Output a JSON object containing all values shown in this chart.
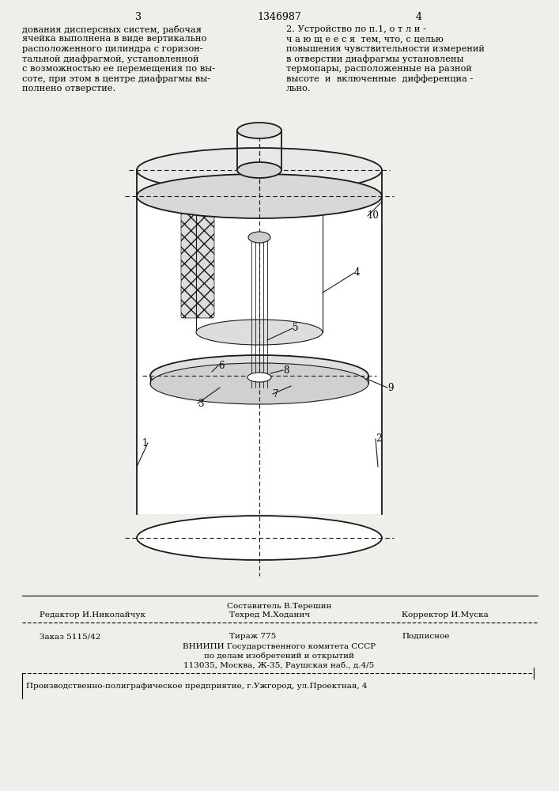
{
  "bg_color": "#f0eeea",
  "page_number_left": "3",
  "page_number_center": "1346987",
  "page_number_right": "4",
  "text_left": "дования дисперсных систем, рабочая\nячейка выполнена в виде вертикально\nрасположенного цилиндра с горизон-\nтальной диафрагмой, установленной\nс возможностью ее перемещения по вы-\nсоте, при этом в центре диафрагмы вы-\nполнено отверстие.",
  "text_right": "2. Устройство по п.1, о т л и -\nч а ю щ е е с я  тем, что, с целью\nповышения чувствительности измерений\nв отверстии диафрагмы установлены\nтермопары, расположенные на разной\nвысоте  и  включенные  дифференциа -\nльно.",
  "footer_line1_left": "Редактор И.Николайчук",
  "footer_line1_center": "Техред М.Ходанич",
  "footer_line1_right": "Корректор И.Муска",
  "footer_composer": "Составитель В.Терешин",
  "footer_line3_left": "Заказ 5115/42",
  "footer_line3_center": "Тираж 775",
  "footer_line3_right": "Подписное",
  "footer_line4": "ВНИИПИ Государственного комитета СССР",
  "footer_line5": "по делам изобретений и открытий",
  "footer_line6": "113035, Москва, Ж-35, Раушская наб., д.4/5",
  "footer_last": "Производственно-полиграфическое предприятие, г.Ужгород, ул.Проектная, 4"
}
